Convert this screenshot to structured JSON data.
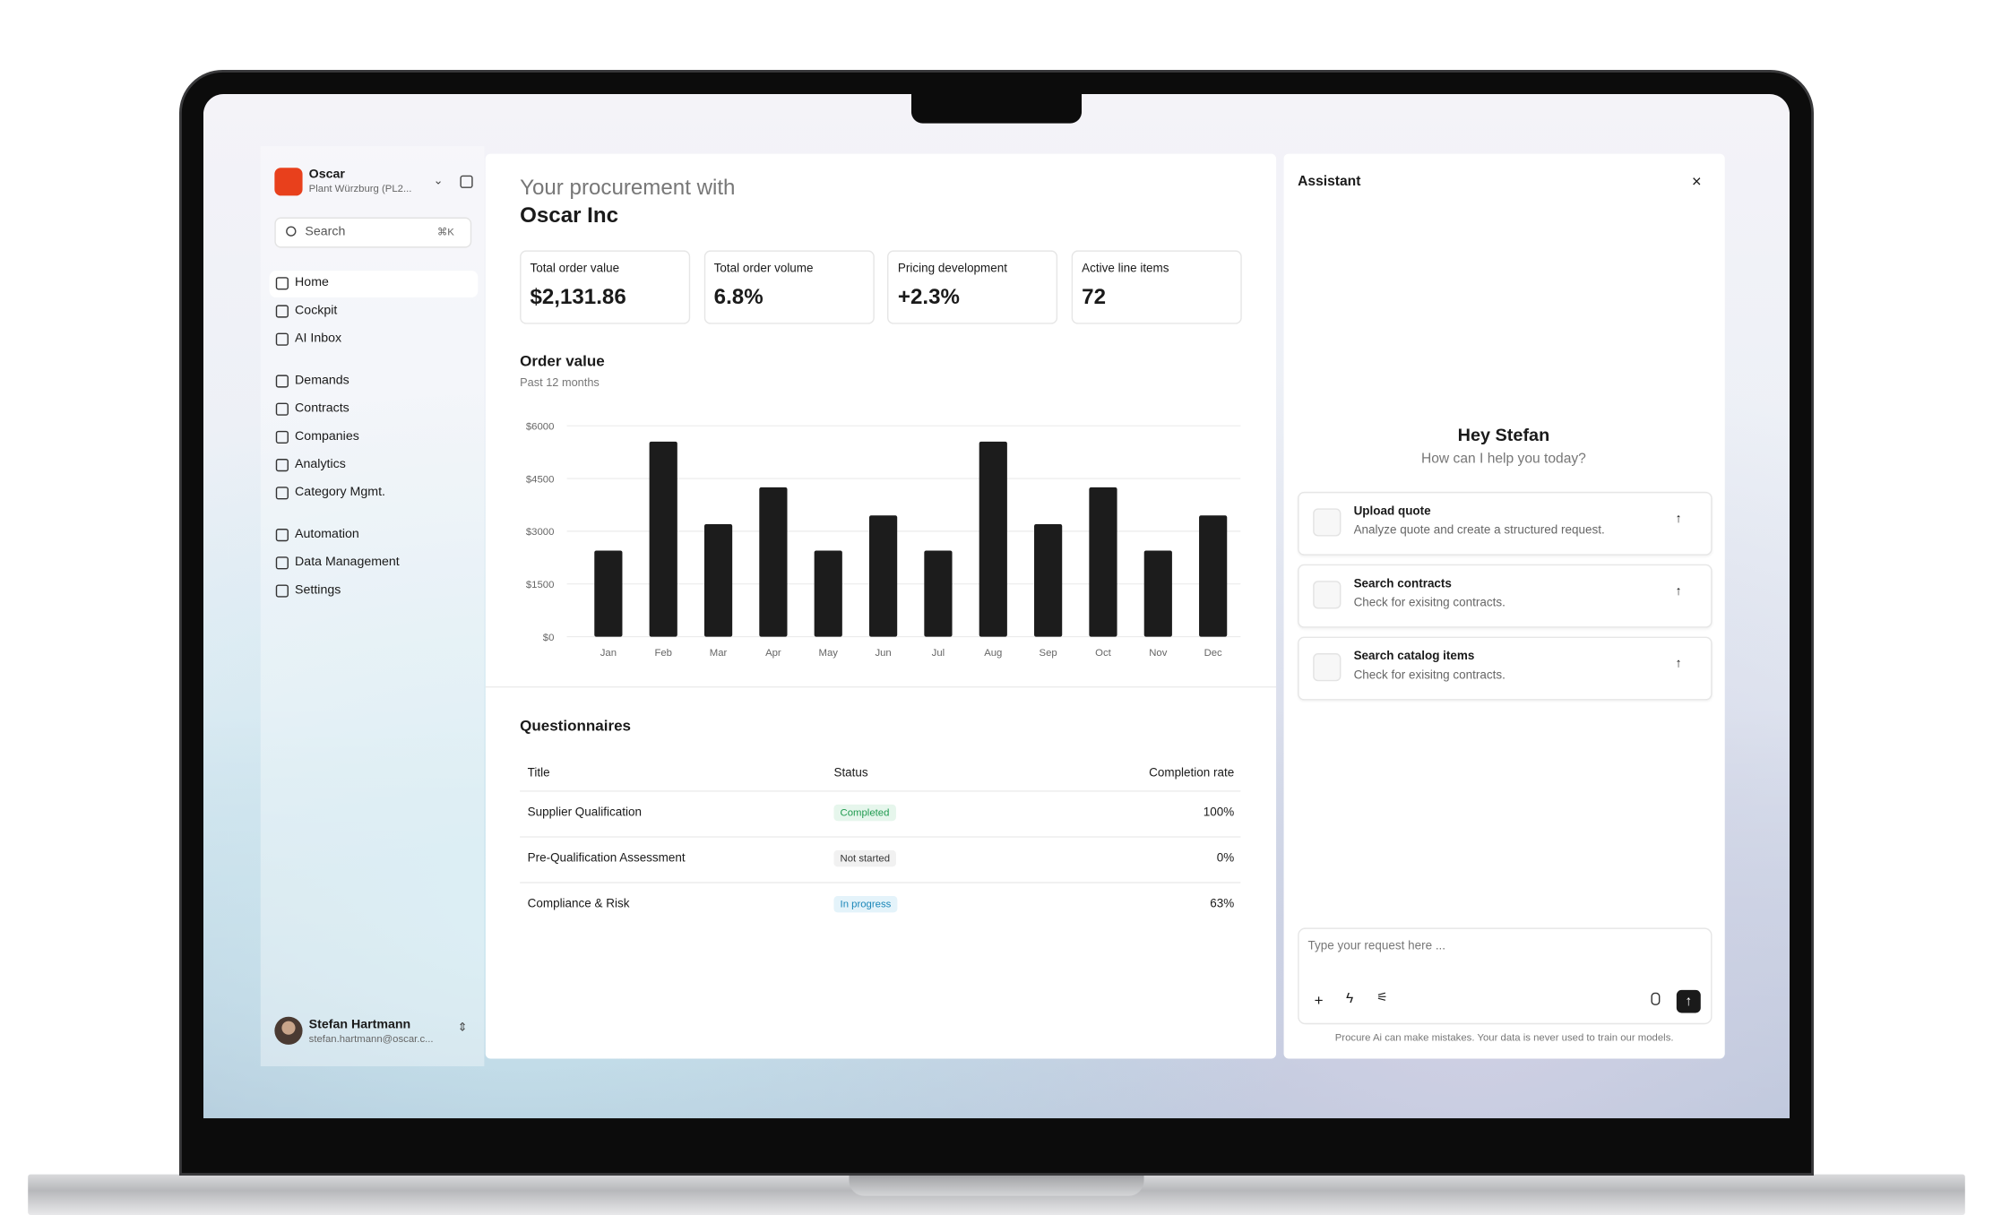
{
  "sidebar": {
    "org_name": "Oscar",
    "org_sub": "Plant Würzburg (PL2...",
    "search_placeholder": "Search",
    "search_shortcut": "⌘K",
    "nav": [
      [
        "Home",
        "Cockpit",
        "AI Inbox"
      ],
      [
        "Demands",
        "Contracts",
        "Companies",
        "Analytics",
        "Category Mgmt."
      ],
      [
        "Automation",
        "Data Management",
        "Settings"
      ]
    ],
    "user": {
      "name": "Stefan Hartmann",
      "email": "stefan.hartmann@oscar.c..."
    }
  },
  "main": {
    "title_line1": "Your procurement with",
    "title_line2": "Oscar Inc",
    "kpis": [
      {
        "label": "Total order value",
        "value": "$2,131.86"
      },
      {
        "label": "Total order volume",
        "value": "6.8%"
      },
      {
        "label": "Pricing development",
        "value": "+2.3%"
      },
      {
        "label": "Active line items",
        "value": "72"
      }
    ],
    "questionnaires": {
      "title": "Questionnaires",
      "columns": [
        "Title",
        "Status",
        "Completion rate"
      ],
      "rows": [
        [
          "Supplier Qualification",
          "Completed",
          "100%"
        ],
        [
          "Pre-Qualification Assessment",
          "Not started",
          "0%"
        ],
        [
          "Compliance & Risk",
          "In progress",
          "63%"
        ]
      ]
    }
  },
  "chart_data": {
    "type": "bar",
    "title": "Order value",
    "subtitle": "Past 12 months",
    "categories": [
      "Jan",
      "Feb",
      "Mar",
      "Apr",
      "May",
      "Jun",
      "Jul",
      "Aug",
      "Sep",
      "Oct",
      "Nov",
      "Dec"
    ],
    "values": [
      2450,
      5550,
      3200,
      4250,
      2450,
      3450,
      2450,
      5550,
      3200,
      4250,
      2450,
      3450
    ],
    "color": "#1c1c1c",
    "ylim": [
      0,
      6000
    ],
    "yticks": [
      {
        "value": 0,
        "label": "$0"
      },
      {
        "value": 1500,
        "label": "$1500"
      },
      {
        "value": 3000,
        "label": "$3000"
      },
      {
        "value": 4500,
        "label": "$4500"
      },
      {
        "value": 6000,
        "label": "$6000"
      }
    ],
    "grid": true
  },
  "assistant": {
    "title": "Assistant",
    "greeting": "Hey Stefan",
    "prompt": "How can I help you today?",
    "actions": [
      {
        "title": "Upload quote",
        "desc": "Analyze quote and create a structured request."
      },
      {
        "title": "Search contracts",
        "desc": "Check for exisitng contracts."
      },
      {
        "title": "Search catalog items",
        "desc": "Check for exisitng contracts."
      }
    ],
    "input_placeholder": "Type your request here ...",
    "disclaimer": "Procure Ai can make mistakes. Your data is never used to train our models."
  }
}
